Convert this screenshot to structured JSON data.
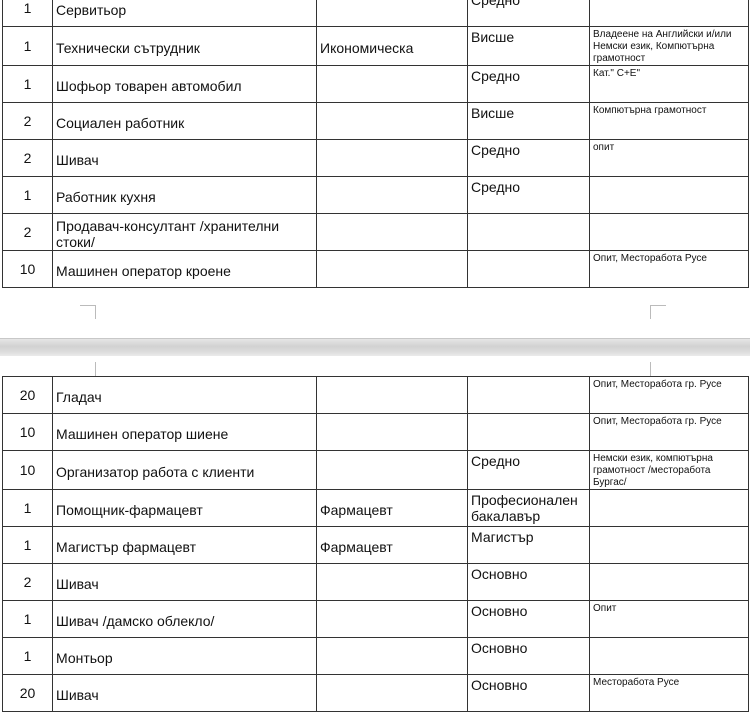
{
  "page1_rows": [
    {
      "count": "1",
      "position": "Сервитьор",
      "specialty": "",
      "education": "Средно",
      "requirements": ""
    },
    {
      "count": "1",
      "position": "Технически сътрудник",
      "specialty": "Икономическа",
      "education": "Висше",
      "requirements": "Владеене на Английски и/или Немски език, Компютърна грамотност"
    },
    {
      "count": "1",
      "position": "Шофьор товарен автомобил",
      "specialty": "",
      "education": "Средно",
      "requirements": "Кат.\" С+Е\""
    },
    {
      "count": "2",
      "position": "Социален работник",
      "specialty": "",
      "education": "Висше",
      "requirements": "Компютърна грамотност"
    },
    {
      "count": "2",
      "position": "Шивач",
      "specialty": "",
      "education": "Средно",
      "requirements": "опит"
    },
    {
      "count": "1",
      "position": "Работник кухня",
      "specialty": "",
      "education": "Средно",
      "requirements": ""
    },
    {
      "count": "2",
      "position": "Продавач-консултант /хранителни стоки/",
      "specialty": "",
      "education": "",
      "requirements": ""
    },
    {
      "count": "10",
      "position": "Машинен оператор кроене",
      "specialty": "",
      "education": "",
      "requirements": "Опит,  Месторабота Русе"
    }
  ],
  "page2_rows": [
    {
      "count": "20",
      "position": "Гладач",
      "specialty": "",
      "education": "",
      "requirements": "Опит,  Месторабота гр. Русе"
    },
    {
      "count": "10",
      "position": "Машинен оператор шиене",
      "specialty": "",
      "education": "",
      "requirements": "Опит,  Месторабота гр. Русе"
    },
    {
      "count": "10",
      "position": "Организатор работа с клиенти",
      "specialty": "",
      "education": "Средно",
      "requirements": "Немски език, компютърна грамотност /месторабота Бургас/"
    },
    {
      "count": "1",
      "position": "Помощник-фармацевт",
      "specialty": "Фармацевт",
      "education": "Професионален бакалавър",
      "requirements": ""
    },
    {
      "count": "1",
      "position": "Магистър фармацевт",
      "specialty": "Фармацевт",
      "education": "Магистър",
      "requirements": ""
    },
    {
      "count": "2",
      "position": "Шивач",
      "specialty": "",
      "education": "Основно",
      "requirements": ""
    },
    {
      "count": "1",
      "position": "Шивач /дамско облекло/",
      "specialty": "",
      "education": "Основно",
      "requirements": "Опит"
    },
    {
      "count": "1",
      "position": "Монтьор",
      "specialty": "",
      "education": "Основно",
      "requirements": ""
    },
    {
      "count": "20",
      "position": "Шивач",
      "specialty": "",
      "education": "Основно",
      "requirements": "Месторабота Русе"
    }
  ]
}
